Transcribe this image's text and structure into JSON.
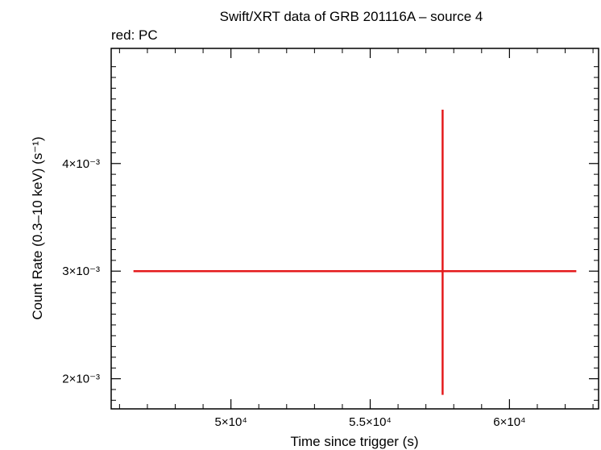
{
  "chart_data": {
    "type": "scatter",
    "title": "Swift/XRT data of GRB 201116A – source 4",
    "subtitle": "red: PC",
    "xlabel": "Time since trigger (s)",
    "ylabel": "Count Rate (0.3–10 keV) (s⁻¹)",
    "xlim": [
      45700,
      63200
    ],
    "ylim": [
      0.00172,
      0.00507
    ],
    "x_ticks": [
      {
        "value": 50000,
        "label": "5×10⁴"
      },
      {
        "value": 55000,
        "label": "5.5×10⁴"
      },
      {
        "value": 60000,
        "label": "6×10⁴"
      }
    ],
    "y_ticks": [
      {
        "value": 0.002,
        "label": "2×10⁻³"
      },
      {
        "value": 0.003,
        "label": "3×10⁻³"
      },
      {
        "value": 0.004,
        "label": "4×10⁻³"
      }
    ],
    "series": [
      {
        "color": "#e41a1c",
        "points": [
          {
            "x": 57600,
            "x_err_low": 11100,
            "x_err_high": 4800,
            "y": 0.003,
            "y_err_low": 0.00115,
            "y_err_high": 0.0015
          }
        ]
      }
    ]
  }
}
